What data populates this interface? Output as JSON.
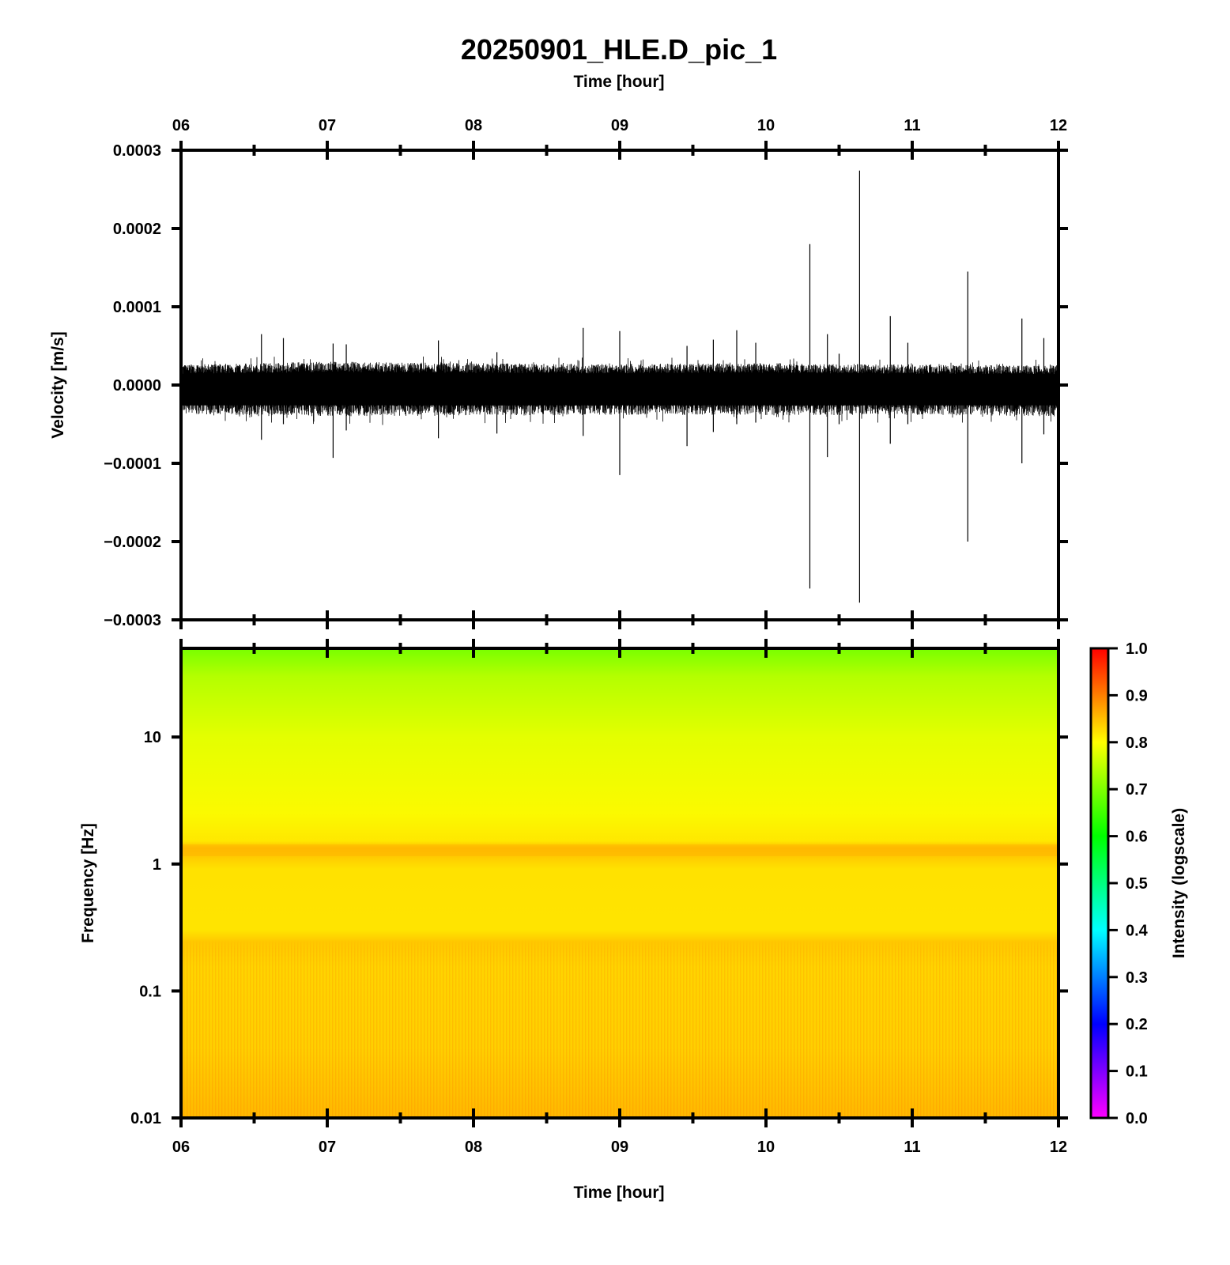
{
  "figure": {
    "title": "20250901_HLE.D_pic_1"
  },
  "chart_data": [
    {
      "type": "line",
      "panel": "waveform",
      "title": "20250901_HLE.D_pic_1",
      "xlabel": "Time [hour]",
      "ylabel": "Velocity [m/s]",
      "xlim": [
        6,
        12
      ],
      "ylim": [
        -0.0003,
        0.0003
      ],
      "x_tick_labels": [
        "06",
        "07",
        "08",
        "09",
        "10",
        "11",
        "12"
      ],
      "y_ticks": [
        -0.0003,
        -0.0002,
        -0.0001,
        0,
        0.0001,
        0.0002,
        0.0003
      ],
      "y_tick_labels": [
        "−0.0003",
        "−0.0002",
        "−0.0001",
        "0.0000",
        "0.0001",
        "0.0002",
        "0.0003"
      ],
      "series": [
        {
          "noise_envelope": [
            {
              "x": 6.0,
              "upper": 2.6e-05,
              "lower": -3.7e-05
            },
            {
              "x": 7.0,
              "upper": 3e-05,
              "lower": -4e-05
            },
            {
              "x": 8.0,
              "upper": 2.8e-05,
              "lower": -3.9e-05
            },
            {
              "x": 9.0,
              "upper": 2.7e-05,
              "lower": -3.8e-05
            },
            {
              "x": 10.0,
              "upper": 2.8e-05,
              "lower": -3.9e-05
            },
            {
              "x": 11.0,
              "upper": 2.6e-05,
              "lower": -3.8e-05
            },
            {
              "x": 12.0,
              "upper": 2.5e-05,
              "lower": -4e-05
            }
          ],
          "spikes": [
            {
              "x": 6.55,
              "max": 6.5e-05,
              "min": -7e-05
            },
            {
              "x": 6.7,
              "max": 6e-05,
              "min": -5e-05
            },
            {
              "x": 7.04,
              "max": 5.3e-05,
              "min": -9.3e-05
            },
            {
              "x": 7.13,
              "max": 5.2e-05,
              "min": -5.8e-05
            },
            {
              "x": 7.76,
              "max": 5.7e-05,
              "min": -6.8e-05
            },
            {
              "x": 8.16,
              "max": 4.2e-05,
              "min": -6.2e-05
            },
            {
              "x": 8.75,
              "max": 7.3e-05,
              "min": -6.5e-05
            },
            {
              "x": 9.0,
              "max": 6.9e-05,
              "min": -0.000115
            },
            {
              "x": 9.46,
              "max": 5e-05,
              "min": -7.8e-05
            },
            {
              "x": 9.64,
              "max": 5.8e-05,
              "min": -6e-05
            },
            {
              "x": 9.8,
              "max": 7e-05,
              "min": -5e-05
            },
            {
              "x": 9.93,
              "max": 5.4e-05,
              "min": -4.8e-05
            },
            {
              "x": 10.3,
              "max": 0.00018,
              "min": -0.00026
            },
            {
              "x": 10.42,
              "max": 6.5e-05,
              "min": -9.2e-05
            },
            {
              "x": 10.5,
              "max": 4e-05,
              "min": -5e-05
            },
            {
              "x": 10.64,
              "max": 0.000274,
              "min": -0.000278
            },
            {
              "x": 10.85,
              "max": 8.8e-05,
              "min": -7.5e-05
            },
            {
              "x": 10.97,
              "max": 5.4e-05,
              "min": -5e-05
            },
            {
              "x": 11.38,
              "max": 0.000145,
              "min": -0.0002
            },
            {
              "x": 11.75,
              "max": 8.5e-05,
              "min": -0.0001
            },
            {
              "x": 11.9,
              "max": 6e-05,
              "min": -6.3e-05
            }
          ]
        }
      ]
    },
    {
      "type": "heatmap",
      "panel": "spectrogram",
      "xlabel": "Time [hour]",
      "ylabel": "Frequency [Hz]",
      "xlim": [
        6,
        12
      ],
      "ylim": [
        0.01,
        50
      ],
      "y_scale": "log",
      "x_tick_labels": [
        "06",
        "07",
        "08",
        "09",
        "10",
        "11",
        "12"
      ],
      "y_ticks": [
        0.01,
        0.1,
        1,
        10
      ],
      "y_tick_labels": [
        "0.01",
        "0.1",
        "1",
        "10"
      ],
      "colorbar": {
        "label": "Intensity (logscale)",
        "range": [
          0,
          1
        ],
        "ticks": [
          0.0,
          0.1,
          0.2,
          0.3,
          0.4,
          0.5,
          0.6,
          0.7,
          0.8,
          0.9,
          1.0
        ],
        "tick_labels": [
          "0.0",
          "0.1",
          "0.2",
          "0.3",
          "0.4",
          "0.5",
          "0.6",
          "0.7",
          "0.8",
          "0.9",
          "1.0"
        ],
        "colors": [
          "#ff00ff",
          "#7f00ff",
          "#0000ff",
          "#007fff",
          "#00ffff",
          "#00ff7f",
          "#00ff00",
          "#7fff00",
          "#ffff00",
          "#ff7f00",
          "#ff0000"
        ]
      },
      "intensity_profile": [
        {
          "freq": 50,
          "intensity": 0.68
        },
        {
          "freq": 20,
          "intensity": 0.74
        },
        {
          "freq": 10,
          "intensity": 0.78
        },
        {
          "freq": 3,
          "intensity": 0.8
        },
        {
          "freq": 1.4,
          "intensity": 0.83
        },
        {
          "freq": 1.2,
          "intensity": 0.84
        },
        {
          "freq": 1.0,
          "intensity": 0.82
        },
        {
          "freq": 0.3,
          "intensity": 0.82
        },
        {
          "freq": 0.25,
          "intensity": 0.85
        },
        {
          "freq": 0.1,
          "intensity": 0.84
        },
        {
          "freq": 0.01,
          "intensity": 0.86
        }
      ]
    }
  ]
}
